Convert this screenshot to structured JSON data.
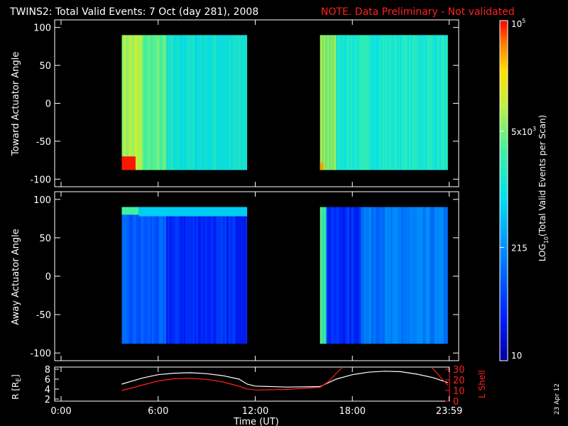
{
  "header": {
    "title": "TWINS2: Total Valid Events:  7 Oct (day 281), 2008",
    "note": "NOTE. Data Preliminary - Not validated",
    "note_color": "#ff2020"
  },
  "side_label": "23 Apr 12",
  "colorbar": {
    "label_main": "LOG",
    "label_sub": "10",
    "label_rest": "(Total Valid Events per Scan)",
    "ticks": [
      {
        "base": "10",
        "exp": "5",
        "value": 100000
      },
      {
        "base": "5x10",
        "exp": "3",
        "value": 5000
      },
      {
        "base": "215",
        "exp": "",
        "value": 215
      },
      {
        "base": "10",
        "exp": "",
        "value": 10
      }
    ],
    "range": [
      10,
      100000
    ],
    "scale": "log"
  },
  "panels": {
    "toward": {
      "ylabel": "Toward Actuator Angle"
    },
    "away": {
      "ylabel": "Away Actuator Angle"
    },
    "orbit": {
      "ylabel_left": "R [R",
      "ylabel_left_sub": "E",
      "ylabel_left_end": "]",
      "ylabel_right": "L Shell"
    }
  },
  "xaxis": {
    "label": "Time (UT)",
    "ticks": [
      "0:00",
      "6:00",
      "12:00",
      "18:00",
      "23:59"
    ]
  },
  "chart_data": [
    {
      "type": "heatmap",
      "ylabel": "Toward Actuator Angle",
      "ylim": [
        -110,
        110
      ],
      "yticks": [
        100,
        50,
        0,
        -50,
        -100
      ],
      "xlim": [
        0,
        24
      ],
      "scale": "log",
      "coverage_hours": [
        [
          3.75,
          11.5
        ],
        [
          16.0,
          23.9
        ]
      ],
      "angle_range": [
        -88,
        90
      ],
      "typical_level": 2000,
      "blocks": [
        {
          "hours": [
            3.75,
            5.0
          ],
          "level": 8000
        },
        {
          "hours": [
            5.0,
            6.5
          ],
          "level": 3500
        },
        {
          "hours": [
            6.5,
            11.5
          ],
          "level": 1200
        },
        {
          "hours": [
            16.0,
            17.0
          ],
          "level": 6000
        },
        {
          "hours": [
            17.0,
            23.9
          ],
          "level": 1500
        }
      ],
      "hotspots": [
        {
          "hours": [
            3.75,
            4.6
          ],
          "angles": [
            -88,
            -70
          ],
          "level": 90000
        },
        {
          "hours": [
            16.0,
            16.2
          ],
          "angles": [
            -88,
            -78
          ],
          "level": 40000
        }
      ]
    },
    {
      "type": "heatmap",
      "ylabel": "Away Actuator Angle",
      "ylim": [
        -110,
        110
      ],
      "yticks": [
        100,
        50,
        0,
        -50,
        -100
      ],
      "xlim": [
        0,
        24
      ],
      "scale": "log",
      "coverage_hours": [
        [
          3.75,
          11.5
        ],
        [
          16.0,
          23.9
        ]
      ],
      "angle_range": [
        -88,
        90
      ],
      "typical_level": 100,
      "blocks": [
        {
          "hours": [
            3.75,
            6.5
          ],
          "level": 80
        },
        {
          "hours": [
            6.5,
            11.5
          ],
          "level": 40
        },
        {
          "hours": [
            16.0,
            16.4
          ],
          "level": 3000
        },
        {
          "hours": [
            16.4,
            18.5
          ],
          "level": 40
        },
        {
          "hours": [
            18.5,
            23.9
          ],
          "level": 150
        }
      ],
      "bands": [
        {
          "hours": [
            3.75,
            4.8
          ],
          "angles": [
            80,
            90
          ],
          "level": 3000
        },
        {
          "hours": [
            4.8,
            11.5
          ],
          "angles": [
            78,
            90
          ],
          "level": 600
        }
      ]
    },
    {
      "type": "line",
      "xlim": [
        0,
        24
      ],
      "ylim_left": [
        2,
        8
      ],
      "yticks_left": [
        8,
        6,
        4,
        2
      ],
      "ylim_right": [
        0,
        30
      ],
      "yticks_right": [
        30,
        20,
        10,
        0
      ],
      "series": [
        {
          "color": "#ffffff",
          "axis": "left",
          "x": [
            3.75,
            5,
            6,
            7,
            8,
            9,
            10,
            11,
            11.5,
            12,
            14,
            16,
            17,
            18,
            19,
            20,
            21,
            22,
            23,
            23.9
          ],
          "y": [
            5.0,
            6.2,
            6.9,
            7.2,
            7.3,
            7.1,
            6.7,
            6.0,
            5.0,
            4.6,
            4.4,
            4.5,
            6.0,
            6.9,
            7.4,
            7.6,
            7.5,
            7.0,
            6.3,
            5.3
          ]
        },
        {
          "color": "#ff2020",
          "axis": "right",
          "x": [
            3.75,
            5,
            6,
            7,
            8,
            9,
            10,
            11,
            11.5,
            12,
            14,
            16,
            16.5,
            17,
            17.4,
            22.9,
            23.3,
            23.9
          ],
          "y": [
            10,
            15,
            19,
            21,
            21.5,
            20.5,
            18,
            14,
            11.5,
            10.5,
            11,
            13,
            18,
            26,
            32,
            32,
            25,
            15
          ]
        }
      ]
    }
  ]
}
